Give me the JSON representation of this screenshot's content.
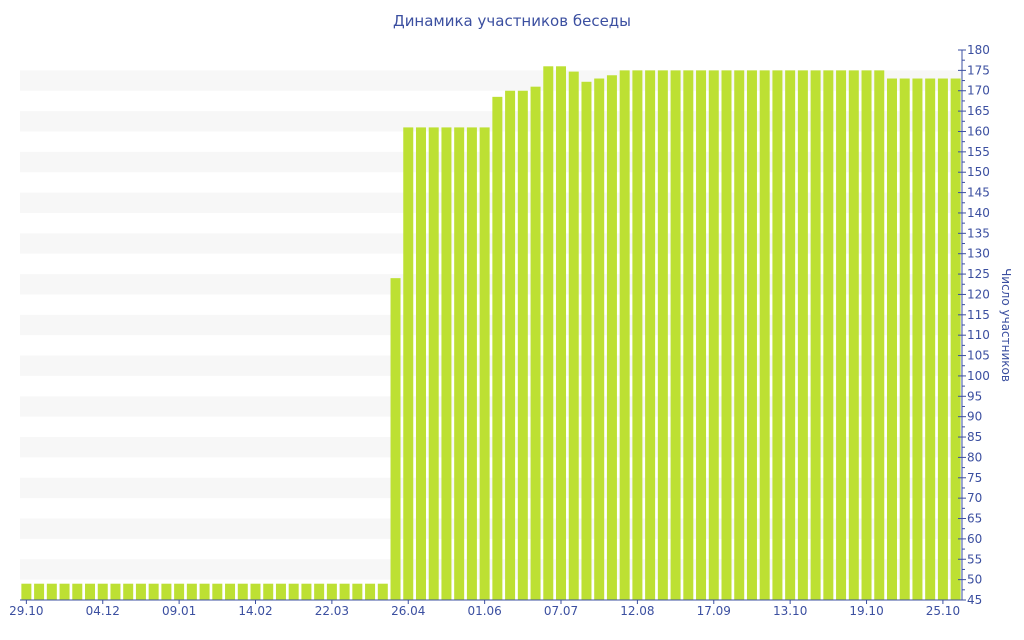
{
  "colors": {
    "bar": "#bde033",
    "axis": "#3b4fa0",
    "band": "#f7f7f7"
  },
  "chart_data": {
    "type": "bar",
    "title": "Динамика участников беседы",
    "xlabel": "",
    "ylabel": "Число участников",
    "ylim": [
      45,
      180
    ],
    "ytick_step": 5,
    "y_axis_side": "right",
    "grid": "alternating horizontal bands",
    "x_tick_labels": [
      {
        "index": 0,
        "label": "29.10"
      },
      {
        "index": 6,
        "label": "04.12"
      },
      {
        "index": 12,
        "label": "09.01"
      },
      {
        "index": 18,
        "label": "14.02"
      },
      {
        "index": 24,
        "label": "22.03"
      },
      {
        "index": 30,
        "label": "26.04"
      },
      {
        "index": 36,
        "label": "01.06"
      },
      {
        "index": 42,
        "label": "07.07"
      },
      {
        "index": 48,
        "label": "12.08"
      },
      {
        "index": 54,
        "label": "17.09"
      },
      {
        "index": 60,
        "label": "13.10"
      },
      {
        "index": 66,
        "label": "19.10"
      },
      {
        "index": 72,
        "label": "25.10"
      }
    ],
    "values": [
      49,
      49,
      49,
      49,
      49,
      49,
      49,
      49,
      49,
      49,
      49,
      49,
      49,
      49,
      49,
      49,
      49,
      49,
      49,
      49,
      49,
      49,
      49,
      49,
      49,
      49,
      49,
      49,
      49,
      124,
      161,
      161,
      161,
      161,
      161,
      161,
      161,
      168.5,
      170,
      170,
      171,
      176,
      176,
      174.7,
      172.2,
      173,
      173.8,
      175,
      175,
      175,
      175,
      175,
      175,
      175,
      175,
      175,
      175,
      175,
      175,
      175,
      175,
      175,
      175,
      175,
      175,
      175,
      175,
      175,
      173,
      173,
      173,
      173,
      173,
      173
    ]
  }
}
